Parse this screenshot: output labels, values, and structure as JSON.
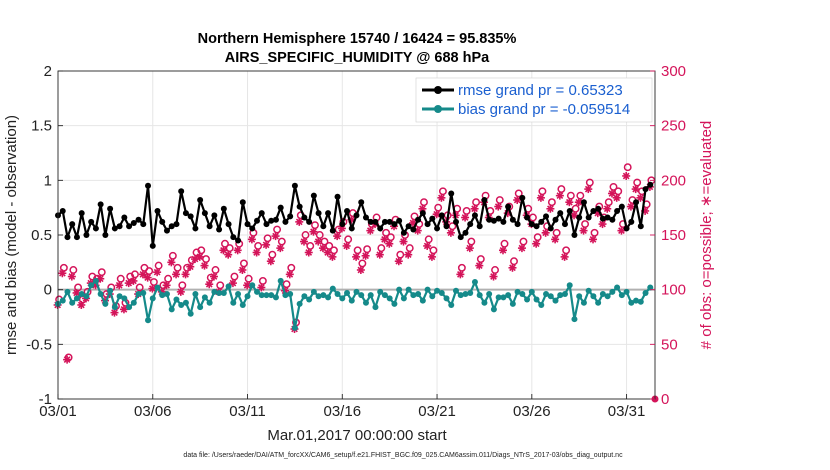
{
  "chart_data": {
    "type": "line",
    "title": "Northern Hemisphere 15740 / 16424 = 95.835%",
    "subtitle": "AIRS_SPECIFIC_HUMIDITY @ 688 hPa",
    "xlabel": "Mar.01,2017 00:00:00 start",
    "ylabel": "rmse and bias (model - observation)",
    "y2label": "# of obs: o=possible; ∗=evaluated",
    "footnote": "data file: /Users/raeder/DAI/ATM_forcXX/CAM6_setup/f.e21.FHIST_BGC.f09_025.CAM6assim.011/Diags_NTrS_2017-03/obs_diag_output.nc",
    "xlim": [
      1,
      32.5
    ],
    "ylim": [
      -1,
      2
    ],
    "y2lim": [
      0,
      300
    ],
    "x_ticks": [
      1,
      6,
      11,
      16,
      21,
      26,
      31
    ],
    "x_tick_labels": [
      "03/01",
      "03/06",
      "03/11",
      "03/16",
      "03/21",
      "03/26",
      "03/31"
    ],
    "y_ticks": [
      -1,
      -0.5,
      0,
      0.5,
      1,
      1.5,
      2
    ],
    "y_tick_labels": [
      "-1",
      "-0.5",
      "0",
      "0.5",
      "1",
      "1.5",
      "2"
    ],
    "y2_ticks": [
      0,
      50,
      100,
      150,
      200,
      250,
      300
    ],
    "y2_tick_labels": [
      "0",
      "50",
      "100",
      "150",
      "200",
      "250",
      "300"
    ],
    "grid": true,
    "legend_position": "top-right",
    "colors": {
      "rmse": "#000000",
      "bias": "#158a8a",
      "obs": "#d4145a",
      "zero_line": "#b0b0b0",
      "grid": "#e6e6e6"
    },
    "x": [
      1.0,
      1.25,
      1.5,
      1.75,
      2.0,
      2.25,
      2.5,
      2.75,
      3.0,
      3.25,
      3.5,
      3.75,
      4.0,
      4.25,
      4.5,
      4.75,
      5.0,
      5.25,
      5.5,
      5.75,
      6.0,
      6.25,
      6.5,
      6.75,
      7.0,
      7.25,
      7.5,
      7.75,
      8.0,
      8.25,
      8.5,
      8.75,
      9.0,
      9.25,
      9.5,
      9.75,
      10.0,
      10.25,
      10.5,
      10.75,
      11.0,
      11.25,
      11.5,
      11.75,
      12.0,
      12.25,
      12.5,
      12.75,
      13.0,
      13.25,
      13.5,
      13.75,
      14.0,
      14.25,
      14.5,
      14.75,
      15.0,
      15.25,
      15.5,
      15.75,
      16.0,
      16.25,
      16.5,
      16.75,
      17.0,
      17.25,
      17.5,
      17.75,
      18.0,
      18.25,
      18.5,
      18.75,
      19.0,
      19.25,
      19.5,
      19.75,
      20.0,
      20.25,
      20.5,
      20.75,
      21.0,
      21.25,
      21.5,
      21.75,
      22.0,
      22.25,
      22.5,
      22.75,
      23.0,
      23.25,
      23.5,
      23.75,
      24.0,
      24.25,
      24.5,
      24.75,
      25.0,
      25.25,
      25.5,
      25.75,
      26.0,
      26.25,
      26.5,
      26.75,
      27.0,
      27.25,
      27.5,
      27.75,
      28.0,
      28.25,
      28.5,
      28.75,
      29.0,
      29.25,
      29.5,
      29.75,
      30.0,
      30.25,
      30.5,
      30.75,
      31.0,
      31.25,
      31.5,
      31.75,
      32.0,
      32.25
    ],
    "series": [
      {
        "name": "rmse grand pr = 0.65323",
        "axis": "left",
        "marker": "filled circle",
        "values": [
          0.68,
          0.72,
          0.48,
          0.6,
          0.48,
          0.7,
          0.5,
          0.62,
          0.56,
          0.78,
          0.5,
          0.74,
          0.56,
          0.58,
          0.66,
          0.58,
          0.61,
          0.64,
          0.6,
          0.95,
          0.4,
          0.72,
          0.62,
          0.54,
          0.58,
          0.6,
          0.9,
          0.7,
          0.67,
          0.56,
          0.82,
          0.7,
          0.58,
          0.68,
          0.55,
          0.74,
          0.6,
          0.48,
          0.45,
          0.8,
          0.6,
          0.56,
          0.63,
          0.7,
          0.6,
          0.63,
          0.64,
          0.75,
          0.62,
          0.67,
          0.95,
          0.76,
          0.66,
          0.62,
          0.86,
          0.7,
          0.58,
          0.7,
          0.54,
          0.85,
          0.6,
          0.72,
          0.56,
          0.68,
          0.8,
          0.66,
          0.62,
          0.62,
          0.56,
          0.62,
          0.62,
          0.6,
          0.63,
          0.52,
          0.58,
          0.55,
          0.64,
          0.7,
          0.6,
          0.65,
          0.56,
          0.68,
          0.58,
          0.88,
          0.62,
          0.48,
          0.52,
          0.6,
          0.68,
          0.58,
          0.82,
          0.64,
          0.63,
          0.65,
          0.62,
          0.76,
          0.64,
          0.6,
          0.84,
          0.66,
          0.6,
          0.58,
          0.62,
          0.67,
          0.56,
          0.64,
          0.7,
          0.6,
          0.72,
          0.5,
          0.66,
          0.8,
          0.66,
          0.72,
          0.74,
          0.65,
          0.66,
          0.64,
          0.72,
          0.76,
          0.56,
          0.62,
          0.8,
          0.58,
          0.92,
          0.96
        ]
      },
      {
        "name": "bias grand pr = -0.059514",
        "axis": "left",
        "marker": "filled circle",
        "values": [
          -0.13,
          -0.1,
          -0.02,
          -0.12,
          -0.08,
          -0.04,
          -0.06,
          0.04,
          0.08,
          -0.04,
          -0.13,
          -0.01,
          -0.16,
          -0.06,
          -0.08,
          -0.16,
          -0.12,
          -0.04,
          -0.03,
          -0.28,
          -0.08,
          0.02,
          -0.05,
          -0.04,
          -0.18,
          -0.09,
          -0.14,
          -0.12,
          -0.22,
          -0.04,
          -0.16,
          -0.07,
          -0.12,
          -0.02,
          -0.03,
          -0.03,
          0.03,
          -0.12,
          -0.04,
          -0.14,
          -0.06,
          0.04,
          -0.02,
          -0.05,
          -0.05,
          -0.05,
          -0.07,
          0.08,
          -0.05,
          -0.04,
          -0.35,
          -0.13,
          -0.06,
          -0.09,
          -0.02,
          -0.06,
          -0.05,
          -0.07,
          0.01,
          -0.04,
          -0.08,
          -0.03,
          -0.1,
          -0.02,
          -0.05,
          -0.12,
          -0.05,
          -0.16,
          -0.02,
          -0.05,
          -0.08,
          -0.13,
          0.0,
          -0.08,
          0.0,
          -0.05,
          -0.04,
          -0.1,
          0.0,
          -0.06,
          -0.01,
          -0.03,
          -0.08,
          -0.14,
          -0.01,
          -0.05,
          -0.04,
          -0.03,
          0.07,
          -0.05,
          -0.12,
          -0.04,
          -0.18,
          -0.07,
          -0.07,
          -0.05,
          -0.13,
          -0.02,
          -0.04,
          -0.09,
          -0.02,
          -0.09,
          -0.14,
          -0.04,
          -0.06,
          -0.1,
          -0.05,
          -0.04,
          0.04,
          -0.27,
          -0.06,
          -0.12,
          -0.01,
          -0.06,
          -0.12,
          -0.04,
          -0.06,
          -0.02,
          0.02,
          -0.05,
          -0.02,
          -0.12,
          -0.1,
          -0.11,
          -0.03,
          0.02
        ]
      },
      {
        "name": "possible",
        "axis": "right",
        "marker": "open circle",
        "values": [
          91,
          120,
          38,
          118,
          102,
          91,
          98,
          112,
          110,
          116,
          96,
          102,
          85,
          110,
          88,
          112,
          114,
          102,
          120,
          117,
          107,
          122,
          104,
          110,
          131,
          120,
          104,
          120,
          127,
          134,
          136,
          128,
          111,
          118,
          104,
          142,
          138,
          112,
          142,
          124,
          110,
          152,
          140,
          108,
          147,
          132,
          155,
          144,
          105,
          120,
          70,
          168,
          150,
          140,
          159,
          150,
          144,
          140,
          136,
          155,
          162,
          146,
          170,
          136,
          124,
          137,
          160,
          166,
          138,
          152,
          148,
          164,
          132,
          150,
          138,
          167,
          160,
          180,
          146,
          136,
          175,
          190,
          168,
          158,
          174,
          120,
          172,
          144,
          180,
          128,
          186,
          172,
          118,
          182,
          142,
          176,
          126,
          188,
          144,
          174,
          166,
          148,
          190,
          158,
          180,
          152,
          192,
          136,
          186,
          174,
          186,
          160,
          198,
          152,
          176,
          166,
          180,
          194,
          190,
          160,
          212,
          182,
          198,
          190,
          178,
          200
        ]
      },
      {
        "name": "evaluated",
        "axis": "right",
        "marker": "asterisk",
        "values": [
          86,
          115,
          36,
          112,
          97,
          86,
          92,
          106,
          104,
          110,
          90,
          96,
          79,
          104,
          82,
          106,
          108,
          96,
          114,
          111,
          101,
          116,
          98,
          104,
          125,
          114,
          98,
          114,
          121,
          128,
          130,
          122,
          105,
          112,
          98,
          136,
          132,
          106,
          136,
          118,
          104,
          146,
          134,
          102,
          141,
          126,
          149,
          138,
          99,
          114,
          64,
          162,
          144,
          134,
          153,
          144,
          138,
          134,
          130,
          149,
          156,
          140,
          164,
          130,
          118,
          131,
          154,
          160,
          132,
          146,
          142,
          158,
          126,
          144,
          132,
          161,
          154,
          174,
          140,
          130,
          169,
          184,
          162,
          152,
          168,
          114,
          166,
          138,
          174,
          122,
          180,
          166,
          112,
          176,
          136,
          170,
          120,
          182,
          138,
          168,
          160,
          142,
          184,
          152,
          174,
          146,
          186,
          130,
          180,
          168,
          180,
          154,
          192,
          146,
          170,
          160,
          174,
          188,
          184,
          154,
          204,
          176,
          192,
          184,
          172,
          194
        ]
      }
    ],
    "legend": [
      "rmse grand pr = 0.65323",
      "bias grand pr = -0.059514"
    ]
  }
}
